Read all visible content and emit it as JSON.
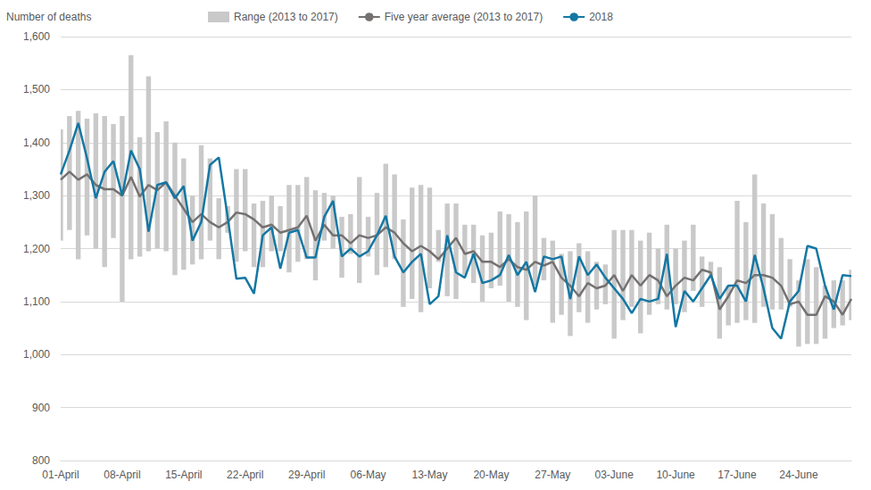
{
  "chart_data": {
    "type": "line",
    "y_label": "Number of deaths",
    "categories": [
      "01-April",
      null,
      null,
      null,
      null,
      null,
      null,
      "08-April",
      null,
      null,
      null,
      null,
      null,
      null,
      "15-April",
      null,
      null,
      null,
      null,
      null,
      null,
      "22-April",
      null,
      null,
      null,
      null,
      null,
      null,
      "29-April",
      null,
      null,
      null,
      null,
      null,
      null,
      "06-May",
      null,
      null,
      null,
      null,
      null,
      null,
      "13-May",
      null,
      null,
      null,
      null,
      null,
      null,
      "20-May",
      null,
      null,
      null,
      null,
      null,
      null,
      "27-May",
      null,
      null,
      null,
      null,
      null,
      null,
      "03-June",
      null,
      null,
      null,
      null,
      null,
      null,
      "10-June",
      null,
      null,
      null,
      null,
      null,
      null,
      "17-June",
      null,
      null,
      null,
      null,
      null,
      null,
      "24-June",
      null,
      null,
      null,
      null,
      null,
      null
    ],
    "series": [
      {
        "name": "Range (2013 to 2017)",
        "type": "range",
        "color": "#c9c9c9",
        "low": [
          1215,
          1235,
          1180,
          1225,
          1200,
          1165,
          1220,
          1100,
          1180,
          1185,
          1195,
          1200,
          1195,
          1150,
          1160,
          1170,
          1180,
          1215,
          1180,
          1230,
          1175,
          1195,
          1165,
          1165,
          1195,
          1195,
          1155,
          1175,
          1180,
          1140,
          1215,
          1200,
          1145,
          1190,
          1135,
          1185,
          1150,
          1165,
          1180,
          1090,
          1105,
          1080,
          1125,
          1175,
          1110,
          1105,
          1150,
          1135,
          1100,
          1125,
          1130,
          1100,
          1090,
          1065,
          1130,
          1140,
          1060,
          1075,
          1035,
          1080,
          1060,
          1085,
          1095,
          1030,
          1065,
          1090,
          1040,
          1075,
          1095,
          1085,
          1095,
          1080,
          1120,
          1090,
          1150,
          1030,
          1055,
          1060,
          1065,
          1060,
          1090,
          1085,
          1085,
          1090,
          1015,
          1020,
          1020,
          1030,
          1050,
          1055,
          1065
        ],
        "high": [
          1425,
          1450,
          1460,
          1445,
          1455,
          1450,
          1435,
          1450,
          1565,
          1410,
          1525,
          1420,
          1440,
          1400,
          1370,
          1300,
          1395,
          1370,
          1295,
          1280,
          1350,
          1350,
          1285,
          1290,
          1300,
          1280,
          1320,
          1320,
          1335,
          1310,
          1305,
          1300,
          1260,
          1265,
          1335,
          1260,
          1305,
          1360,
          1340,
          1255,
          1315,
          1320,
          1315,
          1235,
          1285,
          1285,
          1245,
          1245,
          1225,
          1230,
          1270,
          1265,
          1250,
          1270,
          1300,
          1220,
          1215,
          1190,
          1195,
          1210,
          1195,
          1175,
          1170,
          1235,
          1235,
          1235,
          1215,
          1230,
          1200,
          1245,
          1200,
          1215,
          1245,
          1185,
          1175,
          1165,
          1130,
          1290,
          1250,
          1340,
          1285,
          1265,
          1220,
          1180,
          1140,
          1180,
          1165,
          1130,
          1140,
          1140,
          1160
        ]
      },
      {
        "name": "Five year average (2013 to 2017)",
        "type": "line",
        "color": "#757171",
        "values": [
          1330,
          1345,
          1330,
          1340,
          1320,
          1312,
          1312,
          1300,
          1335,
          1298,
          1320,
          1310,
          1325,
          1300,
          1275,
          1250,
          1265,
          1250,
          1240,
          1250,
          1268,
          1265,
          1255,
          1240,
          1245,
          1230,
          1235,
          1240,
          1262,
          1215,
          1245,
          1225,
          1225,
          1210,
          1225,
          1220,
          1225,
          1240,
          1230,
          1210,
          1195,
          1205,
          1195,
          1180,
          1200,
          1220,
          1190,
          1195,
          1175,
          1175,
          1165,
          1180,
          1165,
          1160,
          1175,
          1168,
          1175,
          1145,
          1130,
          1110,
          1135,
          1125,
          1130,
          1150,
          1120,
          1150,
          1130,
          1150,
          1140,
          1110,
          1130,
          1145,
          1140,
          1160,
          1155,
          1085,
          1110,
          1140,
          1135,
          1150,
          1150,
          1145,
          1130,
          1095,
          1100,
          1075,
          1075,
          1110,
          1100,
          1075,
          1105
        ]
      },
      {
        "name": "2018",
        "type": "line",
        "color": "#1477a3",
        "values": [
          1340,
          1385,
          1437,
          1370,
          1295,
          1345,
          1365,
          1300,
          1385,
          1350,
          1232,
          1320,
          1325,
          1295,
          1318,
          1215,
          1250,
          1358,
          1372,
          1260,
          1143,
          1145,
          1115,
          1225,
          1240,
          1162,
          1230,
          1235,
          1183,
          1183,
          1260,
          1290,
          1185,
          1200,
          1185,
          1195,
          1225,
          1262,
          1185,
          1155,
          1175,
          1190,
          1095,
          1110,
          1225,
          1155,
          1145,
          1190,
          1135,
          1140,
          1150,
          1188,
          1150,
          1175,
          1118,
          1185,
          1180,
          1185,
          1105,
          1185,
          1150,
          1170,
          1145,
          1125,
          1105,
          1078,
          1105,
          1100,
          1105,
          1190,
          1052,
          1120,
          1100,
          1125,
          1150,
          1105,
          1130,
          1130,
          1100,
          1188,
          1125,
          1050,
          1030,
          1100,
          1120,
          1205,
          1200,
          1130,
          1085,
          1150,
          1148
        ]
      }
    ],
    "ylim": [
      800,
      1600
    ],
    "yticks": [
      800,
      900,
      {
        "value": 1000,
        "label": "1,000"
      },
      {
        "value": 1100,
        "label": "1,100"
      },
      {
        "value": 1200,
        "label": "1,200"
      },
      {
        "value": 1300,
        "label": "1,300"
      },
      {
        "value": 1400,
        "label": "1,400"
      },
      {
        "value": 1500,
        "label": "1,500"
      },
      {
        "value": 1600,
        "label": "1,600"
      }
    ],
    "grid": true,
    "legend": "top"
  }
}
